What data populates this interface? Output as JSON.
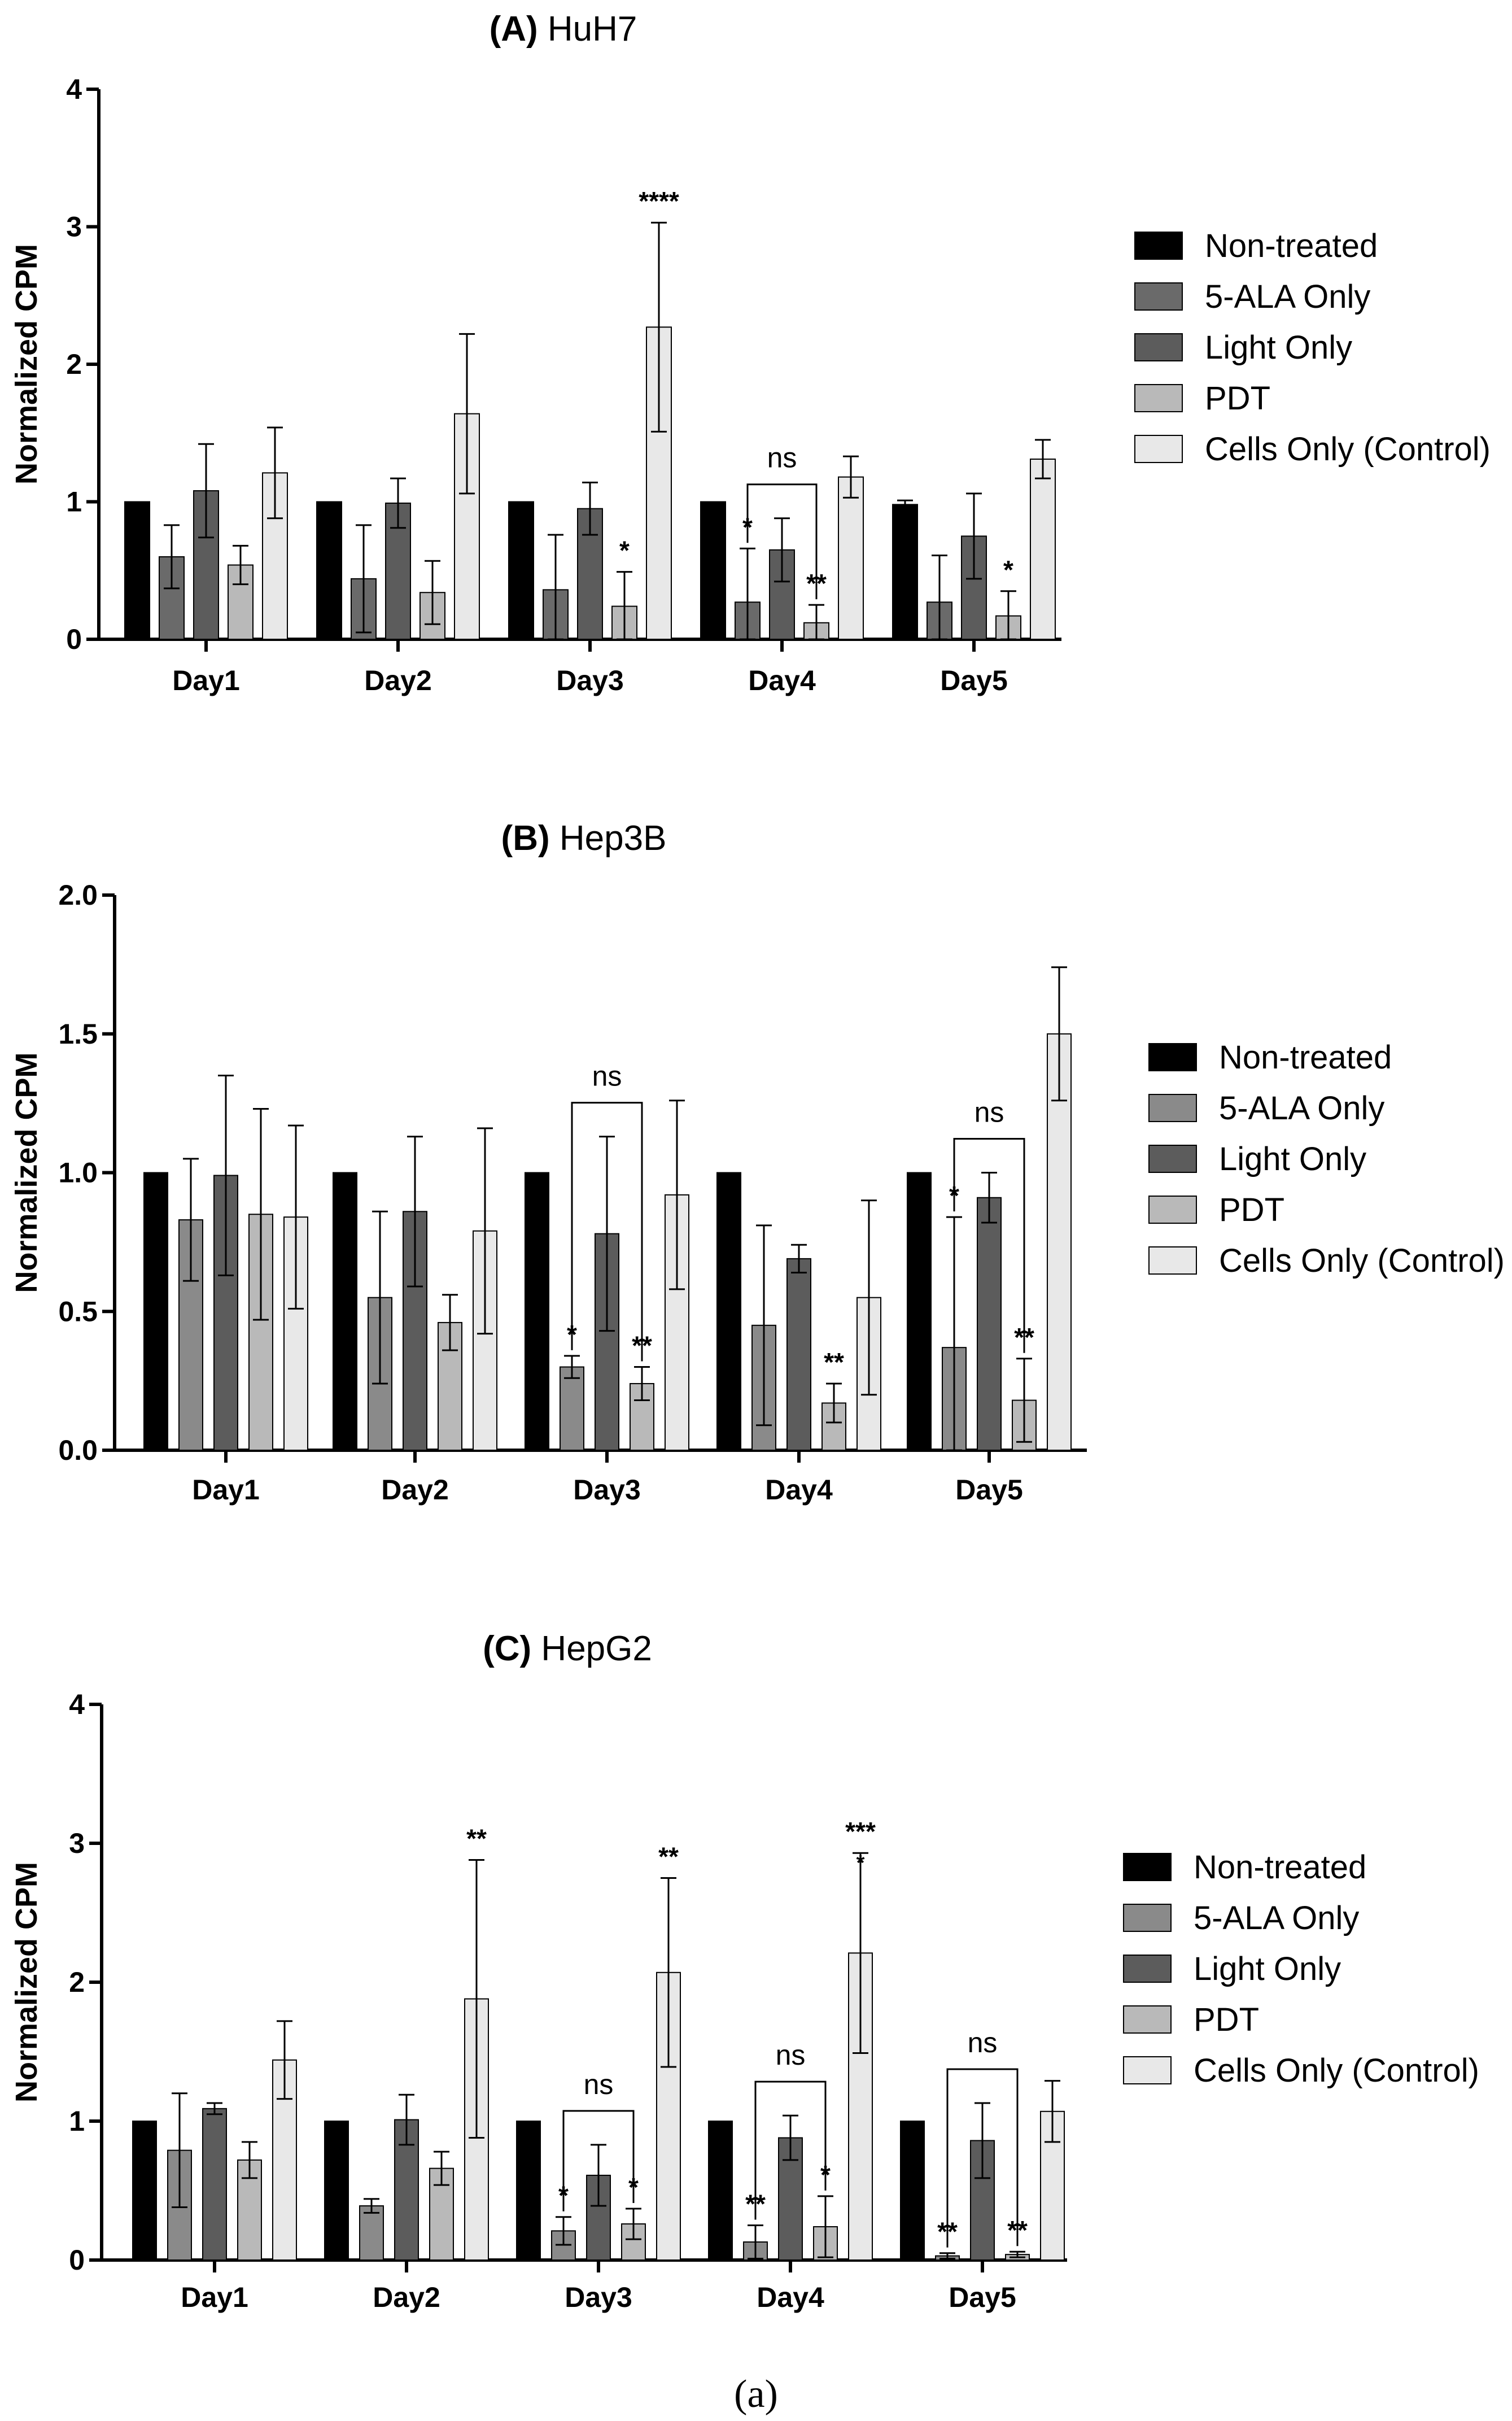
{
  "figure_caption": "(a)",
  "colors": {
    "non_treated": "#000000",
    "ala_only": "#6a6a6a",
    "ala_only_light": "#8a8a8a",
    "light_only": "#5c5c5c",
    "pdt": "#b9b9b9",
    "cells_only": "#e8e8e8",
    "stroke": "#000000"
  },
  "chart_data": [
    {
      "type": "bar",
      "panel": "A",
      "title_letter": "(A)",
      "title_text": "HuH7",
      "ylabel": "Normalized CPM",
      "ylim": [
        0,
        4
      ],
      "yticks": [
        0,
        1,
        2,
        3,
        4
      ],
      "ytick_labels": [
        "0",
        "1",
        "2",
        "3",
        "4"
      ],
      "categories": [
        "Day1",
        "Day2",
        "Day3",
        "Day4",
        "Day5"
      ],
      "series": [
        {
          "name": "Non-treated",
          "color": "#000000",
          "values": [
            1.0,
            1.0,
            1.0,
            1.0,
            0.98
          ],
          "errors": [
            0,
            0,
            0,
            0,
            0.03
          ]
        },
        {
          "name": "5-ALA Only",
          "color": "#6a6a6a",
          "values": [
            0.6,
            0.44,
            0.36,
            0.27,
            0.27
          ],
          "errors": [
            0.23,
            0.39,
            0.4,
            0.39,
            0.34
          ]
        },
        {
          "name": "Light Only",
          "color": "#5c5c5c",
          "values": [
            1.08,
            0.99,
            0.95,
            0.65,
            0.75
          ],
          "errors": [
            0.34,
            0.18,
            0.19,
            0.23,
            0.31
          ]
        },
        {
          "name": "PDT",
          "color": "#b9b9b9",
          "values": [
            0.54,
            0.34,
            0.24,
            0.12,
            0.17
          ],
          "errors": [
            0.14,
            0.23,
            0.25,
            0.13,
            0.18
          ]
        },
        {
          "name": "Cells Only (Control)",
          "color": "#e8e8e8",
          "values": [
            1.21,
            1.64,
            2.27,
            1.18,
            1.31
          ],
          "errors": [
            0.33,
            0.58,
            0.76,
            0.15,
            0.14
          ]
        }
      ],
      "annotations": [
        {
          "day": 2,
          "series": 3,
          "text": "*"
        },
        {
          "day": 2,
          "series": 4,
          "text": "****"
        },
        {
          "day": 3,
          "series": 1,
          "text": "*"
        },
        {
          "day": 3,
          "series": 3,
          "text": "**"
        },
        {
          "day": 4,
          "series": 3,
          "text": "*"
        }
      ],
      "brackets": [
        {
          "day": 3,
          "from": 1,
          "to": 3,
          "text": "ns"
        }
      ]
    },
    {
      "type": "bar",
      "panel": "B",
      "title_letter": "(B)",
      "title_text": "Hep3B",
      "ylabel": "Normalized CPM",
      "ylim": [
        0,
        2
      ],
      "yticks": [
        0,
        0.5,
        1,
        1.5,
        2
      ],
      "ytick_labels": [
        "0.0",
        "0.5",
        "1.0",
        "1.5",
        "2.0"
      ],
      "categories": [
        "Day1",
        "Day2",
        "Day3",
        "Day4",
        "Day5"
      ],
      "series": [
        {
          "name": "Non-treated",
          "color": "#000000",
          "values": [
            1.0,
            1.0,
            1.0,
            1.0,
            1.0
          ],
          "errors": [
            0,
            0,
            0,
            0,
            0
          ]
        },
        {
          "name": "5-ALA Only",
          "color": "#8a8a8a",
          "values": [
            0.83,
            0.55,
            0.3,
            0.45,
            0.37
          ],
          "errors": [
            0.22,
            0.31,
            0.04,
            0.36,
            0.47
          ]
        },
        {
          "name": "Light Only",
          "color": "#5c5c5c",
          "values": [
            0.99,
            0.86,
            0.78,
            0.69,
            0.91
          ],
          "errors": [
            0.36,
            0.27,
            0.35,
            0.05,
            0.09
          ]
        },
        {
          "name": "PDT",
          "color": "#b9b9b9",
          "values": [
            0.85,
            0.46,
            0.24,
            0.17,
            0.18
          ],
          "errors": [
            0.38,
            0.1,
            0.06,
            0.07,
            0.15
          ]
        },
        {
          "name": "Cells Only (Control)",
          "color": "#e8e8e8",
          "values": [
            0.84,
            0.79,
            0.92,
            0.55,
            1.5
          ],
          "errors": [
            0.33,
            0.37,
            0.34,
            0.35,
            0.24
          ]
        }
      ],
      "annotations": [
        {
          "day": 2,
          "series": 1,
          "text": "*"
        },
        {
          "day": 2,
          "series": 3,
          "text": "**"
        },
        {
          "day": 3,
          "series": 3,
          "text": "**"
        },
        {
          "day": 4,
          "series": 1,
          "text": "*"
        },
        {
          "day": 4,
          "series": 3,
          "text": "**"
        }
      ],
      "brackets": [
        {
          "day": 2,
          "from": 1,
          "to": 3,
          "text": "ns"
        },
        {
          "day": 4,
          "from": 1,
          "to": 3,
          "text": "ns"
        }
      ]
    },
    {
      "type": "bar",
      "panel": "C",
      "title_letter": "(C)",
      "title_text": "HepG2",
      "ylabel": "Normalized CPM",
      "ylim": [
        0,
        4
      ],
      "yticks": [
        0,
        1,
        2,
        3,
        4
      ],
      "ytick_labels": [
        "0",
        "1",
        "2",
        "3",
        "4"
      ],
      "categories": [
        "Day1",
        "Day2",
        "Day3",
        "Day4",
        "Day5"
      ],
      "series": [
        {
          "name": "Non-treated",
          "color": "#000000",
          "values": [
            1.0,
            1.0,
            1.0,
            1.0,
            1.0
          ],
          "errors": [
            0,
            0,
            0,
            0,
            0
          ]
        },
        {
          "name": "5-ALA Only",
          "color": "#8a8a8a",
          "values": [
            0.79,
            0.39,
            0.21,
            0.13,
            0.03
          ],
          "errors": [
            0.41,
            0.05,
            0.1,
            0.12,
            0.02
          ]
        },
        {
          "name": "Light Only",
          "color": "#5c5c5c",
          "values": [
            1.09,
            1.01,
            0.61,
            0.88,
            0.86
          ],
          "errors": [
            0.04,
            0.18,
            0.22,
            0.16,
            0.27
          ]
        },
        {
          "name": "PDT",
          "color": "#b9b9b9",
          "values": [
            0.72,
            0.66,
            0.26,
            0.24,
            0.04
          ],
          "errors": [
            0.13,
            0.12,
            0.11,
            0.22,
            0.02
          ]
        },
        {
          "name": "Cells Only (Control)",
          "color": "#e8e8e8",
          "values": [
            1.44,
            1.88,
            2.07,
            2.21,
            1.07
          ],
          "errors": [
            0.28,
            1.0,
            0.68,
            0.72,
            0.22
          ]
        }
      ],
      "annotations": [
        {
          "day": 1,
          "series": 4,
          "text": "**"
        },
        {
          "day": 2,
          "series": 1,
          "text": "*"
        },
        {
          "day": 2,
          "series": 3,
          "text": "*"
        },
        {
          "day": 2,
          "series": 4,
          "text": "**"
        },
        {
          "day": 3,
          "series": 1,
          "text": "**"
        },
        {
          "day": 3,
          "series": 3,
          "text": "*"
        },
        {
          "day": 3,
          "series": 4,
          "text": "***"
        },
        {
          "day": 3,
          "series": 4,
          "text": "*",
          "small": true
        },
        {
          "day": 4,
          "series": 1,
          "text": "**"
        },
        {
          "day": 4,
          "series": 3,
          "text": "**"
        }
      ],
      "brackets": [
        {
          "day": 2,
          "from": 1,
          "to": 3,
          "text": "ns"
        },
        {
          "day": 3,
          "from": 1,
          "to": 3,
          "text": "ns"
        },
        {
          "day": 4,
          "from": 1,
          "to": 3,
          "text": "ns"
        }
      ]
    }
  ]
}
